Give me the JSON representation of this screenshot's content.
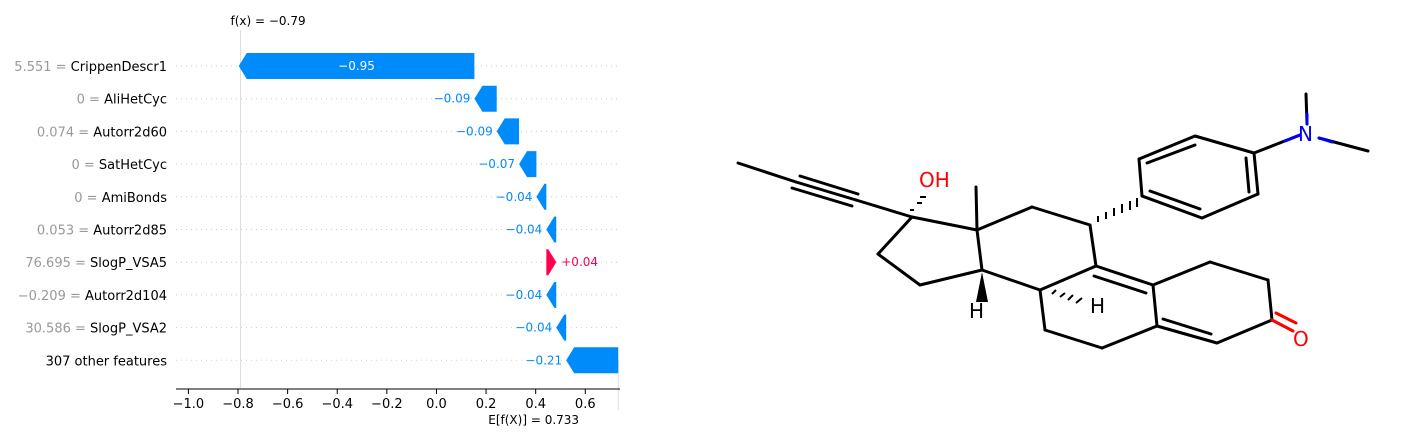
{
  "chart_data": {
    "type": "waterfall",
    "fx_label": "f(x) = −0.79",
    "fx": -0.79,
    "base_label": "E[f(X)] = 0.733",
    "base_value": 0.733,
    "features": [
      {
        "value_text": "5.551",
        "name": "CrippenDescr1",
        "shap": -0.95,
        "label": "−0.95"
      },
      {
        "value_text": "0",
        "name": "AliHetCyc",
        "shap": -0.09,
        "label": "−0.09"
      },
      {
        "value_text": "0.074",
        "name": "Autorr2d60",
        "shap": -0.09,
        "label": "−0.09"
      },
      {
        "value_text": "0",
        "name": "SatHetCyc",
        "shap": -0.07,
        "label": "−0.07"
      },
      {
        "value_text": "0",
        "name": "AmiBonds",
        "shap": -0.04,
        "label": "−0.04"
      },
      {
        "value_text": "0.053",
        "name": "Autorr2d85",
        "shap": -0.04,
        "label": "−0.04"
      },
      {
        "value_text": "76.695",
        "name": "SlogP_VSA5",
        "shap": 0.04,
        "label": "+0.04"
      },
      {
        "value_text": "−0.209",
        "name": "Autorr2d104",
        "shap": -0.04,
        "label": "−0.04"
      },
      {
        "value_text": "30.586",
        "name": "SlogP_VSA2",
        "shap": -0.04,
        "label": "−0.04"
      },
      {
        "value_text": "",
        "name": "307 other features",
        "shap": -0.21,
        "label": "−0.21"
      }
    ],
    "xticks": [
      -1.0,
      -0.8,
      -0.6,
      -0.4,
      -0.2,
      0.0,
      0.2,
      0.4,
      0.6
    ],
    "xtick_labels": [
      "−1.0",
      "−0.8",
      "−0.6",
      "−0.4",
      "−0.2",
      "0.0",
      "0.2",
      "0.4",
      "0.6"
    ],
    "xlim": [
      -1.05,
      0.74
    ],
    "colors": {
      "negative": "#008bfb",
      "positive": "#ff0051",
      "value_text": "#999999"
    }
  },
  "molecule": {
    "atom_labels": {
      "oh": "OH",
      "n": "N",
      "o": "O",
      "h1": "H",
      "h2": "H"
    },
    "colors": {
      "bond": "#000000",
      "oxygen": "#ff0000",
      "nitrogen": "#0000ff"
    }
  }
}
